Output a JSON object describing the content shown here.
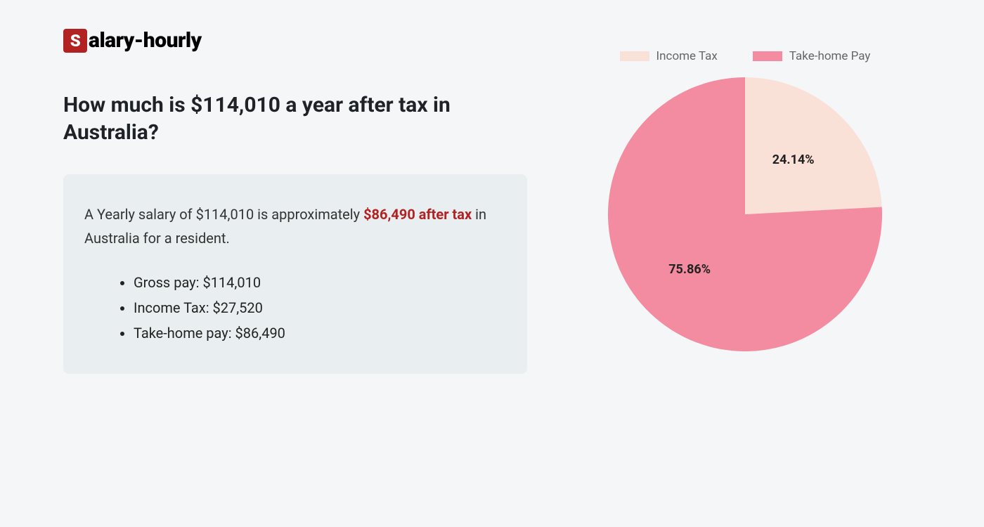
{
  "logo": {
    "badge_letter": "S",
    "rest": "alary-hourly",
    "badge_bg": "#b22222",
    "badge_fg": "#ffffff"
  },
  "headline": "How much is $114,010 a year after tax in Australia?",
  "summary": {
    "prefix": "A Yearly salary of $114,010 is approximately ",
    "highlight": "$86,490 after tax",
    "suffix": " in Australia for a resident.",
    "highlight_color": "#b22222",
    "box_bg": "#e9eff0"
  },
  "bullets": [
    "Gross pay: $114,010",
    "Income Tax: $27,520",
    "Take-home pay: $86,490"
  ],
  "chart": {
    "type": "pie",
    "size": 390,
    "background_color": "#f5f6f8",
    "slices": [
      {
        "label": "Income Tax",
        "value": 24.14,
        "color": "#fae1d7",
        "display": "24.14%"
      },
      {
        "label": "Take-home Pay",
        "value": 75.86,
        "color": "#f38ca0",
        "display": "75.86%"
      }
    ],
    "legend_text_color": "#666666",
    "label_fontsize": 18,
    "label_color": "#222222",
    "start_angle_deg": -90
  }
}
